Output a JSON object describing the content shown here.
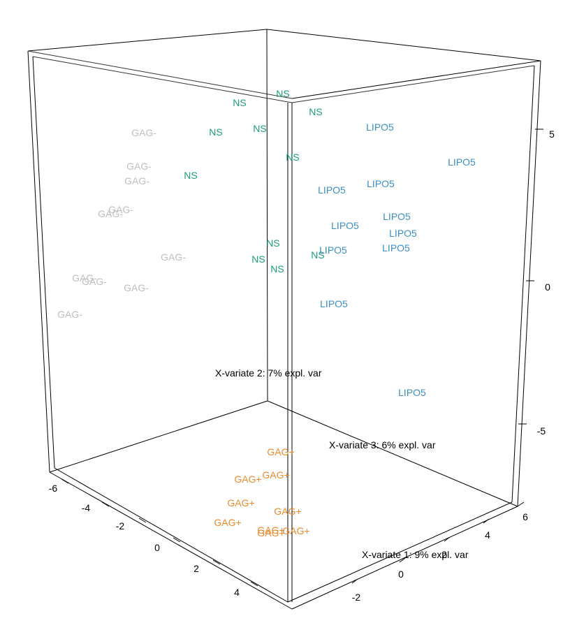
{
  "chart_data": {
    "type": "scatter",
    "title": "",
    "axes": {
      "x1": {
        "label": "X-variate 1: 9% expl. var",
        "ticks": [
          "-2",
          "0",
          "2",
          "4",
          "6"
        ]
      },
      "x2": {
        "label": "X-variate 2: 7% expl. var",
        "ticks": [
          "5",
          "0",
          "-5"
        ]
      },
      "x3": {
        "label": "X-variate 3: 6% expl. var",
        "ticks": [
          "-6",
          "-4",
          "-2",
          "0",
          "2",
          "4"
        ]
      }
    },
    "colors": {
      "NS": "#1b9e77",
      "LIPO5": "#3b8fc4",
      "GAG-": "#bfbfbf",
      "GAG+": "#ee8a2b"
    },
    "points": [
      {
        "label": "NS",
        "group": "NS",
        "sx": 405,
        "sy": 134
      },
      {
        "label": "NS",
        "group": "NS",
        "sx": 343,
        "sy": 147
      },
      {
        "label": "NS",
        "group": "NS",
        "sx": 452,
        "sy": 160
      },
      {
        "label": "NS",
        "group": "NS",
        "sx": 372,
        "sy": 184
      },
      {
        "label": "NS",
        "group": "NS",
        "sx": 309,
        "sy": 189
      },
      {
        "label": "NS",
        "group": "NS",
        "sx": 419,
        "sy": 225
      },
      {
        "label": "NS",
        "group": "NS",
        "sx": 273,
        "sy": 251
      },
      {
        "label": "NS",
        "group": "NS",
        "sx": 391,
        "sy": 348
      },
      {
        "label": "NS",
        "group": "NS",
        "sx": 370,
        "sy": 371
      },
      {
        "label": "NS",
        "group": "NS",
        "sx": 397,
        "sy": 385
      },
      {
        "label": "NS",
        "group": "NS",
        "sx": 455,
        "sy": 365
      },
      {
        "label": "LIPO5",
        "group": "LIPO5",
        "sx": 544,
        "sy": 182
      },
      {
        "label": "LIPO5",
        "group": "LIPO5",
        "sx": 661,
        "sy": 232
      },
      {
        "label": "LIPO5",
        "group": "LIPO5",
        "sx": 545,
        "sy": 263
      },
      {
        "label": "LIPO5",
        "group": "LIPO5",
        "sx": 475,
        "sy": 272
      },
      {
        "label": "LIPO5",
        "group": "LIPO5",
        "sx": 568,
        "sy": 310
      },
      {
        "label": "LIPO5",
        "group": "LIPO5",
        "sx": 494,
        "sy": 323
      },
      {
        "label": "LIPO5",
        "group": "LIPO5",
        "sx": 577,
        "sy": 334
      },
      {
        "label": "LIPO5",
        "group": "LIPO5",
        "sx": 567,
        "sy": 355
      },
      {
        "label": "LIPO5",
        "group": "LIPO5",
        "sx": 477,
        "sy": 358
      },
      {
        "label": "LIPO5",
        "group": "LIPO5",
        "sx": 478,
        "sy": 435
      },
      {
        "label": "LIPO5",
        "group": "LIPO5",
        "sx": 590,
        "sy": 562
      },
      {
        "label": "GAG-",
        "group": "GAG-",
        "sx": 206,
        "sy": 190
      },
      {
        "label": "GAG-",
        "group": "GAG-",
        "sx": 199,
        "sy": 238
      },
      {
        "label": "GAG-",
        "group": "GAG-",
        "sx": 196,
        "sy": 259
      },
      {
        "label": "GAG-",
        "group": "GAG-",
        "sx": 173,
        "sy": 300
      },
      {
        "label": "GAG-",
        "group": "GAG-",
        "sx": 158,
        "sy": 306
      },
      {
        "label": "GAG-",
        "group": "GAG-",
        "sx": 248,
        "sy": 368
      },
      {
        "label": "GAG-",
        "group": "GAG-",
        "sx": 121,
        "sy": 398
      },
      {
        "label": "GAG-",
        "group": "GAG-",
        "sx": 135,
        "sy": 403
      },
      {
        "label": "GAG-",
        "group": "GAG-",
        "sx": 195,
        "sy": 412
      },
      {
        "label": "GAG-",
        "group": "GAG-",
        "sx": 100,
        "sy": 450
      },
      {
        "label": "GAG+",
        "group": "GAG+",
        "sx": 402,
        "sy": 647
      },
      {
        "label": "GAG+",
        "group": "GAG+",
        "sx": 395,
        "sy": 680
      },
      {
        "label": "GAG+",
        "group": "GAG+",
        "sx": 355,
        "sy": 686
      },
      {
        "label": "GAG+",
        "group": "GAG+",
        "sx": 345,
        "sy": 720
      },
      {
        "label": "GAG+",
        "group": "GAG+",
        "sx": 412,
        "sy": 732
      },
      {
        "label": "GAG+",
        "group": "GAG+",
        "sx": 326,
        "sy": 748
      },
      {
        "label": "GAG+",
        "group": "GAG+",
        "sx": 388,
        "sy": 759
      },
      {
        "label": "GAG+",
        "group": "GAG+",
        "sx": 424,
        "sy": 760
      },
      {
        "label": "GAG+",
        "group": "GAG+",
        "sx": 388,
        "sy": 763
      }
    ]
  }
}
